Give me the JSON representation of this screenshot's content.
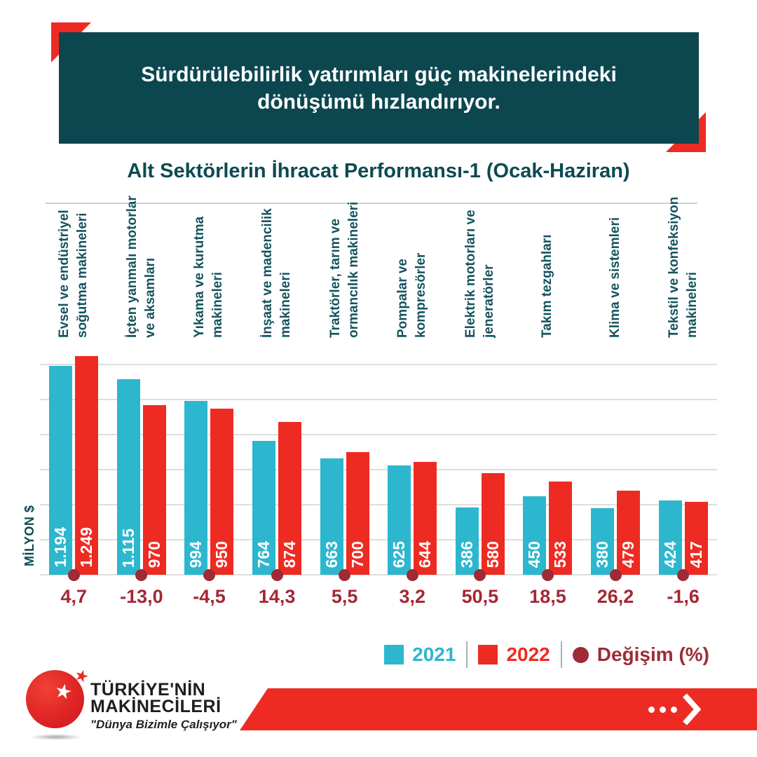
{
  "header": {
    "title_line1": "Sürdürülebilirlik yatırımları güç makinelerindeki",
    "title_line2": "dönüşümü hızlandırıyor."
  },
  "chart_title": "Alt Sektörlerin İhracat Performansı-1 (Ocak-Haziran)",
  "chart_data": {
    "type": "bar",
    "title": "Alt Sektörlerin İhracat Performansı-1 (Ocak-Haziran)",
    "ylabel": "MİLYON $",
    "ylim": [
      0,
      1320
    ],
    "grid": true,
    "grid_step": 200,
    "grid_max": 1200,
    "legend_position": "bottom-right",
    "categories": [
      [
        "Evsel ve endüstriyel",
        "soğutma makineleri"
      ],
      [
        "İçten yanmalı motorlar",
        "ve aksamları"
      ],
      [
        "Yıkama ve kurutma",
        "makineleri"
      ],
      [
        "İnşaat ve madencilik",
        "makineleri"
      ],
      [
        "Traktörler, tarım ve",
        "ormancılık makineleri"
      ],
      [
        "Pompalar ve",
        "kompresörler"
      ],
      [
        "Elektrik motorları ve",
        "jeneratörler"
      ],
      [
        "Takım tezgahları"
      ],
      [
        "Klima ve sistemleri"
      ],
      [
        "Tekstil ve konfeksiyon",
        "makineleri"
      ]
    ],
    "series": [
      {
        "name": "2021",
        "color": "#2CB7CE",
        "values": [
          1194,
          1115,
          994,
          764,
          663,
          625,
          386,
          450,
          380,
          424
        ],
        "labels": [
          "1.194",
          "1.115",
          "994",
          "764",
          "663",
          "625",
          "386",
          "450",
          "380",
          "424"
        ]
      },
      {
        "name": "2022",
        "color": "#EE2B23",
        "values": [
          1249,
          970,
          950,
          874,
          700,
          644,
          580,
          533,
          479,
          417
        ],
        "labels": [
          "1.249",
          "970",
          "950",
          "874",
          "700",
          "644",
          "580",
          "533",
          "479",
          "417"
        ]
      }
    ],
    "change": {
      "name": "Değişim (%)",
      "color": "#9E2B35",
      "values": [
        4.7,
        -13.0,
        -4.5,
        14.3,
        5.5,
        3.2,
        50.5,
        18.5,
        26.2,
        -1.6
      ],
      "labels": [
        "4,7",
        "-13,0",
        "-4,5",
        "14,3",
        "5,5",
        "3,2",
        "50,5",
        "18,5",
        "26,2",
        "-1,6"
      ]
    }
  },
  "legend": {
    "items": [
      {
        "label": "2021",
        "swatch": "square",
        "color": "#2CB7CE"
      },
      {
        "label": "2022",
        "swatch": "square",
        "color": "#EE2B23"
      },
      {
        "label": "Değişim (%)",
        "swatch": "circle",
        "color": "#9E2B35"
      }
    ]
  },
  "logo": {
    "brand_line1": "TÜRKİYE'NİN",
    "brand_line2": "MAKİNECİLERİ",
    "tagline": "\"Dünya Bizimle Çalışıyor\"",
    "star_icon": "★"
  },
  "colors": {
    "header_bg": "#0C4750",
    "accent_red": "#EE2B23",
    "bar_2021": "#2CB7CE",
    "bar_2022": "#EE2B23",
    "change_maroon": "#9E2B35",
    "gridline": "#DEDEDE",
    "label_teal": "#14535E"
  }
}
